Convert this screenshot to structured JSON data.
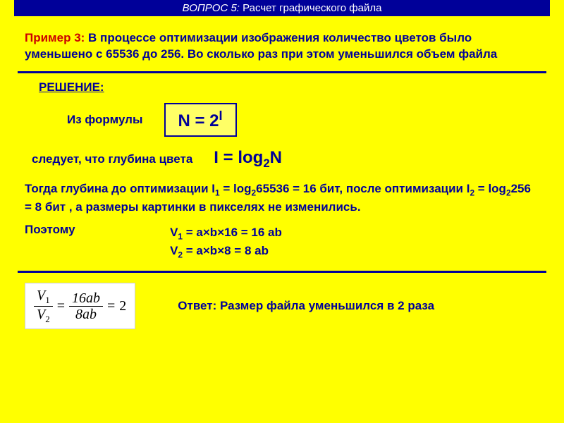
{
  "header": {
    "question_label": "ВОПРОС 5:",
    "title": "Расчет графического файла"
  },
  "problem": {
    "label": "Пример 3:",
    "text": "В процессе оптимизации изображения количество цветов было уменьшено с 65536 до 256. Во сколько раз при этом уменьшился объем файла"
  },
  "solution": {
    "label": "РЕШЕНИЕ:",
    "from_formula_text": "Из формулы",
    "main_formula_html": "N = 2<sup>I</sup>",
    "follows_text": "следует, что глубина цвета",
    "depth_formula_html": "I = log<sub>2</sub>N",
    "paragraph_html": "Тогда глубина до оптимизации I<sub>1</sub> = log<sub>2</sub>65536 = 16 бит, после оптимизации I<sub>2</sub> = log<sub>2</sub>256 = 8 бит , а размеры картинки в пикселях не изменились.",
    "therefore": "Поэтому",
    "eq1_html": "V<sub>1</sub> = a×b×16 = 16 ab",
    "eq2_html": "V<sub>2</sub> = a×b×8 = 8 ab",
    "fraction": {
      "left_num_html": "V<sub>1</sub>",
      "left_den_html": "V<sub>2</sub>",
      "mid_num": "16ab",
      "mid_den": "8ab",
      "result": "2"
    },
    "answer": "Ответ: Размер файла уменьшился в 2 раза"
  },
  "colors": {
    "background": "#ffff00",
    "header_bg": "#000099",
    "header_text": "#ffffff",
    "accent": "#000099",
    "problem_label": "#cc0000",
    "formula_box_bg": "#ffff66",
    "fraction_bg": "#ffffff"
  }
}
